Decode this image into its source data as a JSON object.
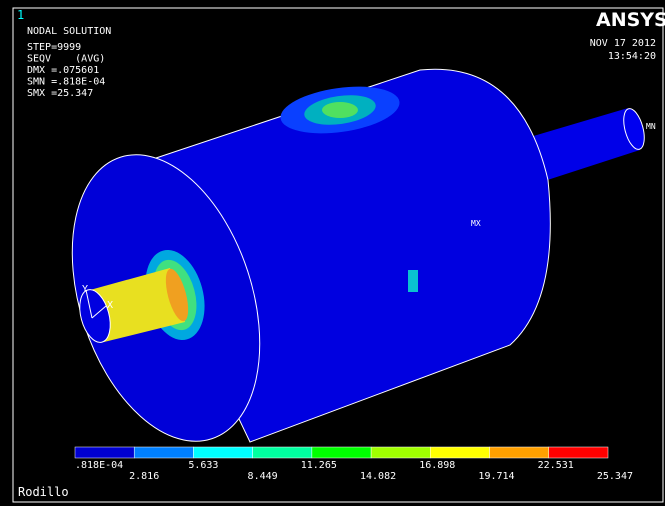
{
  "window_number": "1",
  "header": {
    "title": "NODAL SOLUTION",
    "lines": [
      "STEP=9999",
      "SEQV    (AVG)",
      "DMX =.075601",
      "SMN =.818E-04",
      "SMX =25.347"
    ]
  },
  "logo": "ANSYS",
  "date": "NOV 17 2012",
  "time": "13:54:20",
  "model": {
    "max_label": "MX",
    "min_label": "MN",
    "axes": [
      "Y",
      "X"
    ]
  },
  "legend": {
    "labels": [
      ".818E-04",
      "2.816",
      "5.633",
      "8.449",
      "11.265",
      "14.082",
      "16.898",
      "19.714",
      "22.531",
      "25.347"
    ]
  },
  "footer": "Rodillo"
}
